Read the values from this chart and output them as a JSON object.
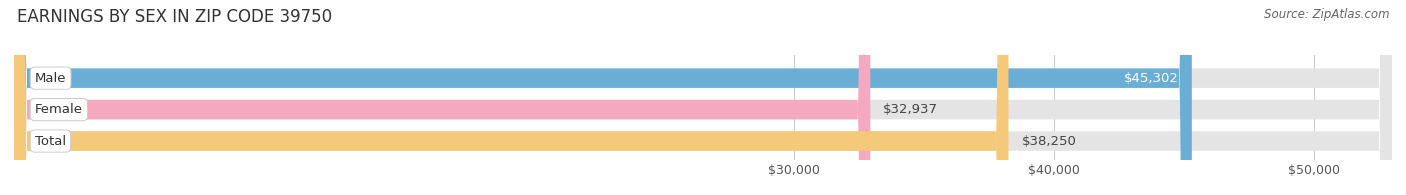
{
  "title": "EARNINGS BY SEX IN ZIP CODE 39750",
  "source": "Source: ZipAtlas.com",
  "categories": [
    "Male",
    "Female",
    "Total"
  ],
  "values": [
    45302,
    32937,
    38250
  ],
  "bar_colors": [
    "#6aaed6",
    "#f4a9c0",
    "#f5c97a"
  ],
  "bar_bg_color": "#e4e4e4",
  "value_labels": [
    "$45,302",
    "$32,937",
    "$38,250"
  ],
  "tick_labels": [
    "$30,000",
    "$40,000",
    "$50,000"
  ],
  "tick_values": [
    30000,
    40000,
    50000
  ],
  "xmin": 0,
  "xmax": 53000,
  "title_fontsize": 12,
  "bar_label_fontsize": 9.5,
  "tick_fontsize": 9,
  "source_fontsize": 8.5,
  "background_color": "#ffffff",
  "category_label_fontsize": 9.5,
  "label_text_color": "#444444",
  "grid_color": "#cccccc"
}
